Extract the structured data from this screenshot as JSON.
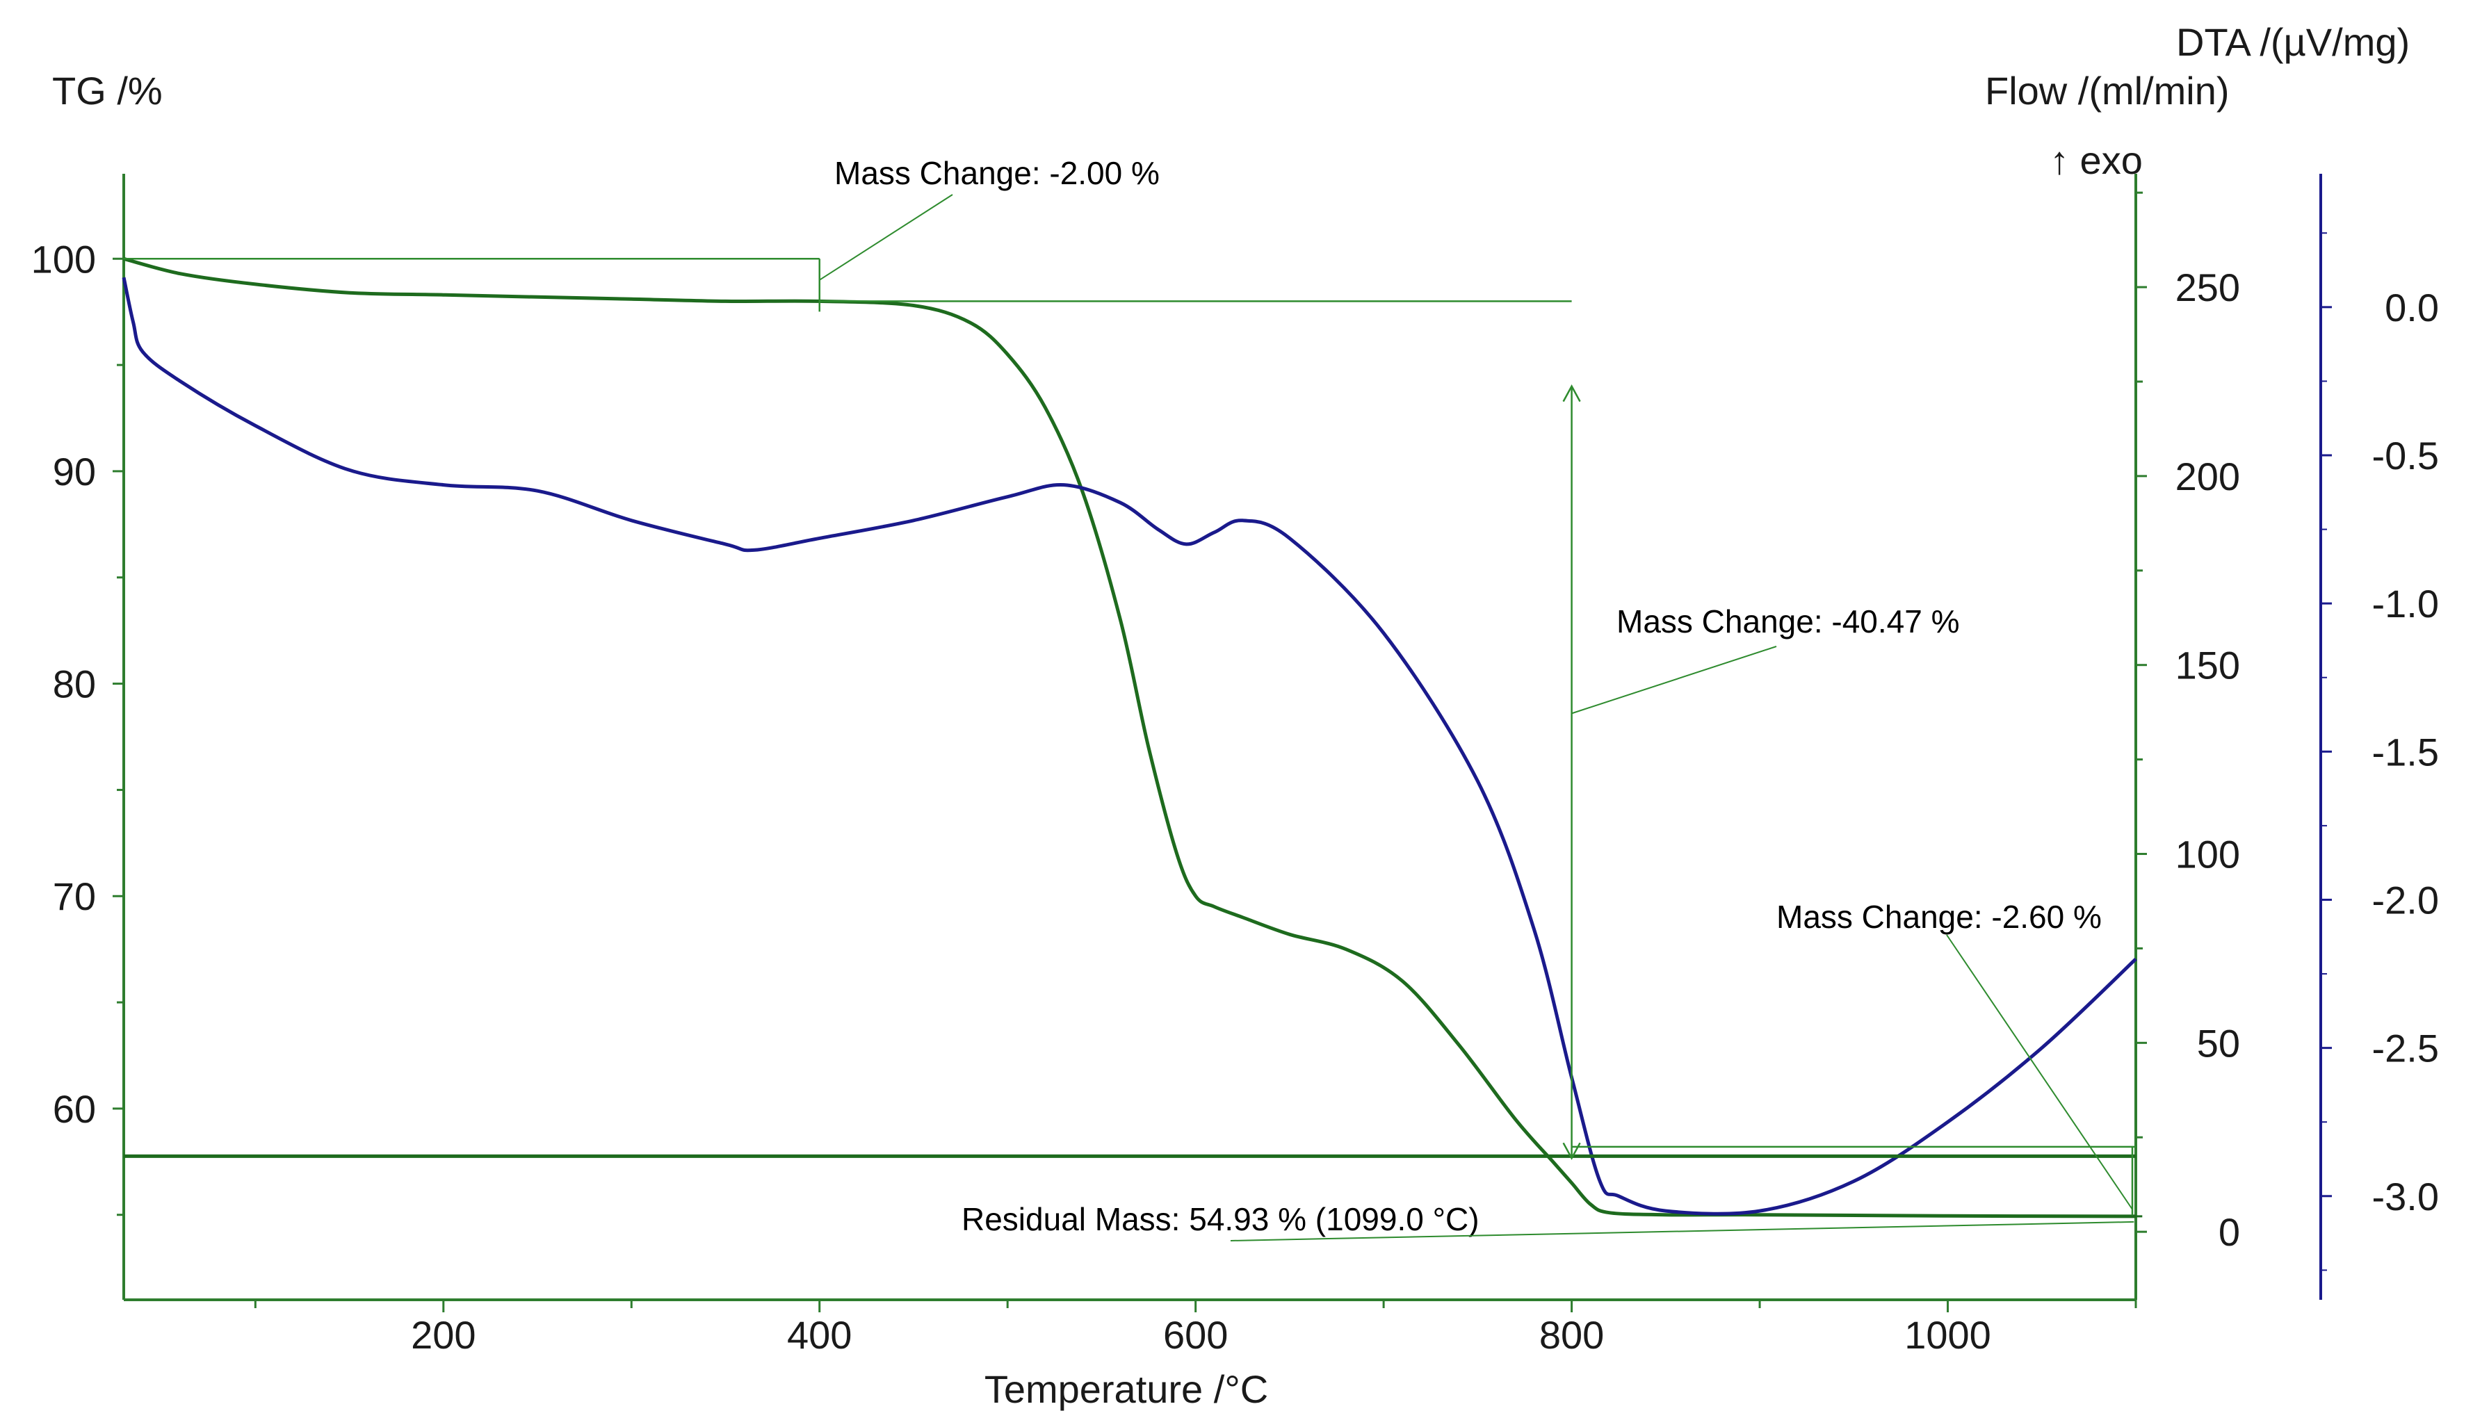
{
  "colors": {
    "tg": "#1e6b1e",
    "tg_annot": "#2e8b2e",
    "dta": "#1a1a8c",
    "axis": "#2e7d2e",
    "text": "#1a1a1a"
  },
  "chart_data": {
    "type": "line",
    "title": "",
    "x_axis": {
      "label": "Temperature /°C",
      "range": [
        30,
        1100
      ],
      "ticks": [
        200,
        400,
        600,
        800,
        1000
      ],
      "minor_ticks": [
        100,
        300,
        500,
        700,
        900,
        1100
      ]
    },
    "y_axis_left": {
      "label": "TG /%",
      "range": [
        51,
        104
      ],
      "ticks": [
        60,
        70,
        80,
        90,
        100
      ]
    },
    "y_axis_flow": {
      "label": "Flow /(ml/min)",
      "range": [
        -18,
        280
      ],
      "ticks": [
        0,
        50,
        100,
        150,
        200,
        250
      ]
    },
    "y_axis_dta": {
      "label": "DTA /(µV/mg)",
      "exo_marker": "↑ exo",
      "range": [
        -3.35,
        0.45
      ],
      "ticks": [
        0.0,
        -0.5,
        -1.0,
        -1.5,
        -2.0,
        -2.5,
        -3.0
      ],
      "tick_labels": [
        "0.0",
        "-0.5",
        "-1.0",
        "-1.5",
        "-2.0",
        "-2.5",
        "-3.0"
      ]
    },
    "series": [
      {
        "name": "TG",
        "axis": "left",
        "x": [
          30,
          60,
          100,
          150,
          200,
          250,
          300,
          350,
          400,
          450,
          480,
          500,
          520,
          540,
          560,
          575,
          590,
          600,
          610,
          625,
          650,
          680,
          710,
          740,
          770,
          790,
          800,
          810,
          820,
          850,
          900,
          1000,
          1100
        ],
        "y": [
          100,
          99.3,
          98.8,
          98.4,
          98.3,
          98.2,
          98.1,
          98.0,
          98.0,
          97.8,
          97.0,
          95.5,
          93.0,
          89.0,
          83.0,
          77.0,
          72.0,
          70.0,
          69.5,
          69.0,
          68.2,
          67.5,
          66.0,
          63.0,
          59.5,
          57.5,
          56.5,
          55.5,
          55.1,
          55.0,
          55.0,
          54.95,
          54.93
        ]
      },
      {
        "name": "DTA",
        "axis": "dta",
        "x": [
          30,
          35,
          40,
          60,
          100,
          150,
          200,
          250,
          300,
          350,
          365,
          400,
          450,
          500,
          530,
          560,
          580,
          595,
          610,
          625,
          650,
          700,
          750,
          780,
          800,
          815,
          825,
          850,
          900,
          950,
          1000,
          1050,
          1100
        ],
        "y": [
          0.1,
          -0.05,
          -0.15,
          -0.25,
          -0.4,
          -0.55,
          -0.6,
          -0.62,
          -0.72,
          -0.8,
          -0.82,
          -0.78,
          -0.72,
          -0.64,
          -0.6,
          -0.66,
          -0.75,
          -0.8,
          -0.76,
          -0.72,
          -0.78,
          -1.1,
          -1.6,
          -2.1,
          -2.6,
          -2.95,
          -3.0,
          -3.05,
          -3.05,
          -2.95,
          -2.75,
          -2.5,
          -2.2
        ]
      },
      {
        "name": "Flow",
        "axis": "flow",
        "x": [
          30,
          1100
        ],
        "y": [
          20,
          20
        ]
      }
    ],
    "annotations": [
      {
        "text": "Mass Change: -2.00 %",
        "x_from": 30,
        "x_to": 400,
        "y_from": 100,
        "y_to": 98.0
      },
      {
        "text": "Mass Change: -40.47 %",
        "x": 800,
        "y_from": 98.0,
        "y_to": 57.5
      },
      {
        "text": "Mass Change: -2.60 %",
        "x": 1100,
        "y_from": 57.5,
        "y_to": 54.93
      },
      {
        "text": "Residual Mass: 54.93 % (1099.0 °C)",
        "x": 1099.0,
        "y": 54.93
      }
    ]
  }
}
